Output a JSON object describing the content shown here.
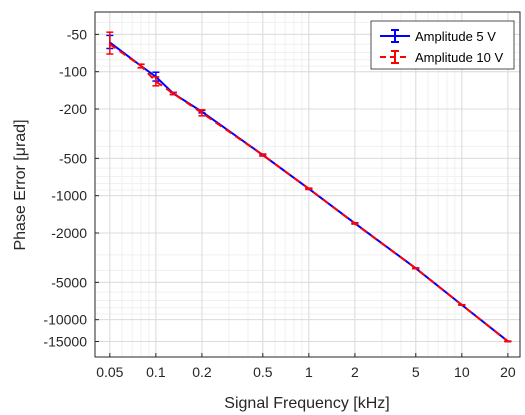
{
  "chart_data": {
    "type": "line",
    "xlabel": "Signal Frequency [kHz]",
    "ylabel": "Phase Error [μrad]",
    "x_scale": "log",
    "y_scale": "log (negative values)",
    "xlim": [
      0.04,
      24
    ],
    "ylim": [
      -20000,
      -33
    ],
    "x_ticks": [
      0.05,
      0.1,
      0.2,
      0.5,
      1,
      2,
      5,
      10,
      20
    ],
    "x_tick_labels": [
      "0.05",
      "0.1",
      "0.2",
      "0.5",
      "1",
      "2",
      "5",
      "10",
      "20"
    ],
    "y_ticks": [
      -50,
      -100,
      -200,
      -500,
      -1000,
      -2000,
      -5000,
      -10000,
      -15000
    ],
    "y_tick_labels": [
      "-50",
      "-100",
      "-200",
      "-500",
      "-1000",
      "-2000",
      "-5000",
      "-10000",
      "-15000"
    ],
    "grid": true,
    "minor_grid": true,
    "legend_position": "top-right",
    "series": [
      {
        "name": "Amplitude 5 V",
        "color": "#0000ff",
        "line_style": "solid",
        "x": [
          0.05,
          0.08,
          0.1,
          0.13,
          0.2,
          0.5,
          1,
          2,
          5,
          10,
          20
        ],
        "y": [
          -58,
          -90,
          -110,
          -150,
          -210,
          -470,
          -880,
          -1670,
          -3850,
          -7600,
          -14950
        ],
        "error": [
          7,
          3,
          9,
          3,
          5,
          8,
          10,
          15,
          25,
          30,
          60
        ]
      },
      {
        "name": "Amplitude 10 V",
        "color": "#ff0000",
        "line_style": "dashed",
        "x": [
          0.05,
          0.08,
          0.1,
          0.13,
          0.2,
          0.5,
          1,
          2,
          5,
          10,
          20
        ],
        "y": [
          -60,
          -90,
          -120,
          -150,
          -215,
          -470,
          -880,
          -1680,
          -3860,
          -7620,
          -14970
        ],
        "error": [
          12,
          3,
          10,
          3,
          12,
          8,
          10,
          15,
          25,
          30,
          60
        ]
      }
    ]
  }
}
